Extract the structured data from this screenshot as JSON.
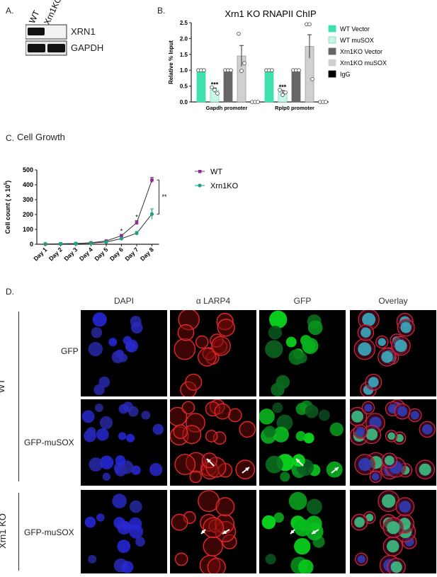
{
  "panelA": {
    "letter": "A.",
    "lanes": [
      "WT",
      "Xrn1KO"
    ],
    "bands": [
      "XRN1",
      "GAPDH"
    ]
  },
  "panelB": {
    "letter": "B.",
    "title": "Xrn1 KO RNAPII ChIP",
    "ylabel": "Relative % Input",
    "yticks": [
      "0.0",
      "0.5",
      "1.0",
      "1.5",
      "2.0",
      "2.5"
    ],
    "groups": [
      "Gapdh promoter",
      "Rplp0 promoter"
    ],
    "significance": [
      "***",
      "***"
    ],
    "legend": [
      "WT Vector",
      "WT muSOX",
      "Xrn1KO Vector",
      "Xrn1KO muSOX",
      "IgG"
    ]
  },
  "panelC": {
    "letter": "C.",
    "title": "Cell Growth",
    "ylabel_prefix": "Cell count ( x 10",
    "ylabel_sup": "5",
    "ylabel_suffix": ")",
    "yticks": [
      "0",
      "100",
      "200",
      "300",
      "400",
      "500"
    ],
    "xticks": [
      "Day 1",
      "Day 2",
      "Day 3",
      "Day 4",
      "Day 5",
      "Day 6",
      "Day 7",
      "Day 8"
    ],
    "legend": [
      "WT",
      "Xrn1KO"
    ],
    "significance_points": [
      "*",
      "*"
    ],
    "bracket_label": "**"
  },
  "panelD": {
    "letter": "D.",
    "columns": [
      "DAPI",
      "α LARP4",
      "GFP",
      "Overlay"
    ],
    "group_labels": [
      "WT",
      "Xrn1 KO"
    ],
    "row_labels": [
      "GFP",
      "GFP-muSOX",
      "GFP-muSOX"
    ]
  },
  "chart_data": [
    {
      "type": "bar",
      "title": "Xrn1 KO RNAPII ChIP",
      "ylabel": "Relative % Input",
      "ylim": [
        0,
        2.5
      ],
      "categories": [
        "Gapdh promoter",
        "Rplp0 promoter"
      ],
      "series": [
        {
          "name": "WT Vector",
          "color": "#3ee0b0",
          "values": [
            1.0,
            1.0
          ],
          "errors": [
            0.02,
            0.02
          ]
        },
        {
          "name": "WT muSOX",
          "color": "#c8f5e6",
          "values": [
            0.37,
            0.3
          ],
          "errors": [
            0.07,
            0.06
          ]
        },
        {
          "name": "Xrn1KO Vector",
          "color": "#666666",
          "values": [
            1.0,
            1.0
          ],
          "errors": [
            0.02,
            0.02
          ]
        },
        {
          "name": "Xrn1KO muSOX",
          "color": "#d0d0d0",
          "values": [
            1.45,
            1.75
          ],
          "errors": [
            0.33,
            0.37
          ]
        },
        {
          "name": "IgG",
          "color": "#000000",
          "values": [
            0.0,
            0.0
          ],
          "errors": [
            0.0,
            0.0
          ]
        }
      ],
      "points": [
        [
          [
            1.0,
            1.0,
            1.0
          ],
          [
            0.46,
            0.38,
            0.27
          ],
          [
            1.0,
            1.0,
            1.0
          ],
          [
            2.15,
            0.98,
            1.22
          ],
          [
            0.0,
            0.0,
            0.0
          ]
        ],
        [
          [
            1.0,
            1.0,
            1.0
          ],
          [
            0.38,
            0.22,
            0.3
          ],
          [
            1.0,
            1.0,
            1.0
          ],
          [
            2.45,
            2.45,
            0.72
          ],
          [
            0.0,
            0.0,
            0.0
          ]
        ]
      ]
    },
    {
      "type": "line",
      "title": "Cell Growth",
      "ylabel": "Cell count ( x 10^5)",
      "ylim": [
        0,
        500
      ],
      "x": [
        "Day 1",
        "Day 2",
        "Day 3",
        "Day 4",
        "Day 5",
        "Day 6",
        "Day 7",
        "Day 8"
      ],
      "series": [
        {
          "name": "WT",
          "color": "#8b2b8f",
          "values": [
            2,
            3,
            5,
            10,
            22,
            58,
            145,
            432
          ],
          "errors": [
            1,
            1,
            1,
            2,
            3,
            6,
            14,
            18
          ]
        },
        {
          "name": "Xrn1KO",
          "color": "#17a383",
          "values": [
            2,
            3,
            4,
            8,
            15,
            38,
            74,
            203
          ],
          "errors": [
            1,
            1,
            1,
            2,
            3,
            5,
            12,
            35
          ]
        }
      ]
    }
  ]
}
